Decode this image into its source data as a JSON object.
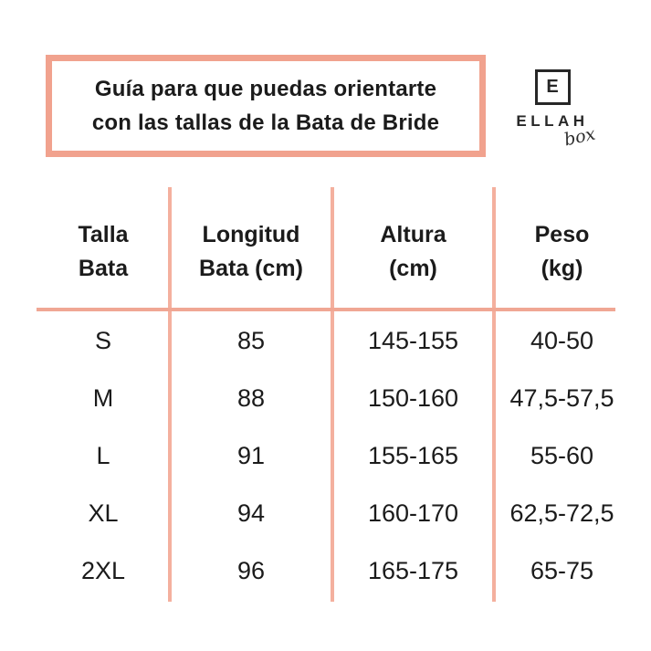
{
  "header": {
    "title_line1": "Guía para que puedas orientarte",
    "title_line2": "con las tallas de la Bata de Bride"
  },
  "logo": {
    "initial": "E",
    "name": "ELLAH",
    "tagline": "box"
  },
  "colors": {
    "accent_border": "#f1a28e",
    "table_line": "#f3ab99",
    "text": "#1b1b1b",
    "background": "#ffffff"
  },
  "table": {
    "columns": [
      {
        "line1": "Talla",
        "line2": "Bata"
      },
      {
        "line1": "Longitud",
        "line2": "Bata (cm)"
      },
      {
        "line1": "Altura",
        "line2": "(cm)"
      },
      {
        "line1": "Peso",
        "line2": "(kg)"
      }
    ],
    "rows": [
      {
        "size": "S",
        "length": "85",
        "height": "145-155",
        "weight": "40-50"
      },
      {
        "size": "M",
        "length": "88",
        "height": "150-160",
        "weight": "47,5-57,5"
      },
      {
        "size": "L",
        "length": "91",
        "height": "155-165",
        "weight": "55-60"
      },
      {
        "size": "XL",
        "length": "94",
        "height": "160-170",
        "weight": "62,5-72,5"
      },
      {
        "size": "2XL",
        "length": "96",
        "height": "165-175",
        "weight": "65-75"
      }
    ]
  },
  "chart_data": {
    "type": "table",
    "title": "Guía para que puedas orientarte con las tallas de la Bata de Bride",
    "columns": [
      "Talla Bata",
      "Longitud Bata (cm)",
      "Altura (cm)",
      "Peso (kg)"
    ],
    "rows": [
      [
        "S",
        "85",
        "145-155",
        "40-50"
      ],
      [
        "M",
        "88",
        "150-160",
        "47,5-57,5"
      ],
      [
        "L",
        "91",
        "155-165",
        "55-60"
      ],
      [
        "XL",
        "94",
        "160-170",
        "62,5-72,5"
      ],
      [
        "2XL",
        "96",
        "165-175",
        "65-75"
      ]
    ]
  }
}
